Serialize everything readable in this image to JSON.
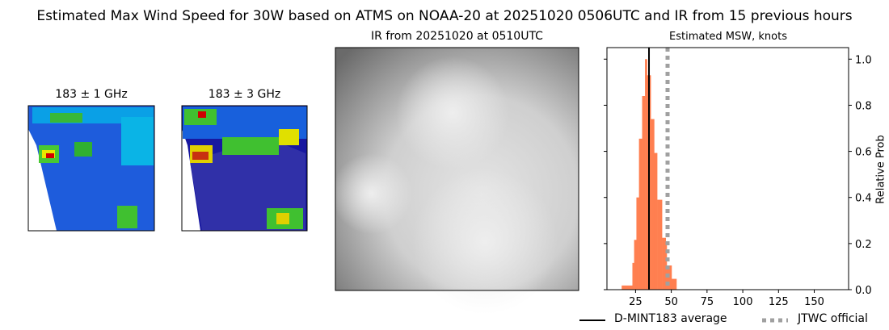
{
  "title": "Estimated Max Wind Speed for 30W based on ATMS on NOAA-20 at 20251020 0506UTC and IR from 15 previous hours",
  "panels": {
    "mw1_title": "183 ± 1 GHz",
    "mw2_title": "183 ± 3 GHz",
    "ir_title": "IR from 20251020 at 0510UTC"
  },
  "colors": {
    "bars": "#ff7f50",
    "average_line": "#000000",
    "jtwc_line": "#a0a0a0"
  },
  "chart_data": {
    "type": "bar",
    "title": "Estimated MSW, knots",
    "xlabel": "",
    "ylabel": "Relative Prob",
    "xlim": [
      5,
      174
    ],
    "ylim": [
      0,
      1.05
    ],
    "xticks": [
      25,
      50,
      75,
      100,
      125,
      150
    ],
    "yticks": [
      0.0,
      0.2,
      0.4,
      0.6,
      0.8,
      1.0
    ],
    "y_axis_side": "right",
    "bin_edges": [
      15.3,
      22.8,
      24,
      25.6,
      27.4,
      29.6,
      31.6,
      33,
      34.4,
      35.6,
      38,
      40.1,
      43.5,
      46.1,
      46.8,
      50.2,
      53.6
    ],
    "values": [
      0.018,
      0.116,
      0.216,
      0.4,
      0.655,
      0.84,
      1.0,
      0.93,
      0.93,
      0.74,
      0.593,
      0.39,
      0.225,
      0.21,
      0.105,
      0.047
    ],
    "average": 34.4,
    "jtwc_official": 47.4,
    "legend": [
      {
        "label": "D-MINT183 average",
        "style": "solid black line"
      },
      {
        "label": "JTWC official",
        "style": "dotted gray line"
      }
    ],
    "legend_placement": "bottom-right"
  }
}
